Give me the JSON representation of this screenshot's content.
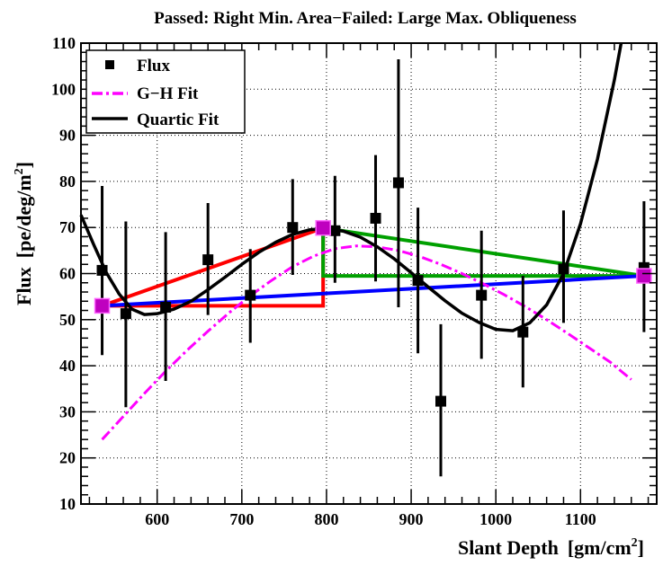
{
  "chart_data": {
    "type": "scatter",
    "title": "Passed: Right Min. Area−Failed: Large Max. Obliqueness",
    "xlabel": "Slant Depth",
    "xlabel_units": "[gm/cm",
    "xlabel_units_sup": "2",
    "xlabel_units_end": "]",
    "ylabel": "Flux",
    "ylabel_units": "[pe/deg/m",
    "ylabel_units_sup": "2",
    "ylabel_units_end": "]",
    "xlim": [
      510,
      1190
    ],
    "ylim": [
      10,
      110
    ],
    "xticks": [
      600,
      700,
      800,
      900,
      1000,
      1100
    ],
    "yticks": [
      10,
      20,
      30,
      40,
      50,
      60,
      70,
      80,
      90,
      100,
      110
    ],
    "grid": true,
    "legend_position": "top-left",
    "legend": [
      {
        "label": "Flux",
        "style": "marker",
        "color": "#000000"
      },
      {
        "label": "G−H Fit",
        "style": "dashdot",
        "color": "#ff00ff"
      },
      {
        "label": "Quartic Fit",
        "style": "solid",
        "color": "#000000"
      }
    ],
    "flux_points": [
      {
        "x": 535,
        "y": 60.7,
        "err_low": 42.3,
        "err_high": 79.0
      },
      {
        "x": 563,
        "y": 51.3,
        "err_low": 31.0,
        "err_high": 71.3
      },
      {
        "x": 610,
        "y": 52.7,
        "err_low": 36.7,
        "err_high": 69.0
      },
      {
        "x": 660,
        "y": 63.0,
        "err_low": 51.0,
        "err_high": 75.3
      },
      {
        "x": 710,
        "y": 55.3,
        "err_low": 45.0,
        "err_high": 65.3
      },
      {
        "x": 760,
        "y": 70.0,
        "err_low": 59.7,
        "err_high": 80.5
      },
      {
        "x": 810,
        "y": 69.3,
        "err_low": 58.0,
        "err_high": 81.2
      },
      {
        "x": 858,
        "y": 72.0,
        "err_low": 58.3,
        "err_high": 85.7
      },
      {
        "x": 885,
        "y": 79.7,
        "err_low": 52.7,
        "err_high": 106.5
      },
      {
        "x": 908,
        "y": 58.5,
        "err_low": 42.7,
        "err_high": 74.3
      },
      {
        "x": 935,
        "y": 32.3,
        "err_low": 16.0,
        "err_high": 49.0
      },
      {
        "x": 983,
        "y": 55.3,
        "err_low": 41.5,
        "err_high": 69.3
      },
      {
        "x": 1032,
        "y": 47.3,
        "err_low": 35.3,
        "err_high": 59.5
      },
      {
        "x": 1080,
        "y": 61.0,
        "err_low": 49.3,
        "err_high": 73.7
      },
      {
        "x": 1175,
        "y": 61.3,
        "err_low": 47.3,
        "err_high": 75.7
      }
    ],
    "gh_fit": [
      {
        "x": 535,
        "y": 24.0
      },
      {
        "x": 560,
        "y": 29.0
      },
      {
        "x": 585,
        "y": 34.0
      },
      {
        "x": 610,
        "y": 38.8
      },
      {
        "x": 635,
        "y": 43.3
      },
      {
        "x": 660,
        "y": 47.5
      },
      {
        "x": 685,
        "y": 51.5
      },
      {
        "x": 710,
        "y": 55.2
      },
      {
        "x": 735,
        "y": 58.5
      },
      {
        "x": 760,
        "y": 61.5
      },
      {
        "x": 785,
        "y": 63.8
      },
      {
        "x": 810,
        "y": 65.4
      },
      {
        "x": 835,
        "y": 66.0
      },
      {
        "x": 860,
        "y": 65.8
      },
      {
        "x": 885,
        "y": 65.0
      },
      {
        "x": 910,
        "y": 63.7
      },
      {
        "x": 935,
        "y": 62.0
      },
      {
        "x": 960,
        "y": 60.0
      },
      {
        "x": 985,
        "y": 57.8
      },
      {
        "x": 1010,
        "y": 55.4
      },
      {
        "x": 1035,
        "y": 52.8
      },
      {
        "x": 1060,
        "y": 50.0
      },
      {
        "x": 1085,
        "y": 47.0
      },
      {
        "x": 1110,
        "y": 43.9
      },
      {
        "x": 1135,
        "y": 40.8
      },
      {
        "x": 1160,
        "y": 37.0
      }
    ],
    "quartic_fit": [
      {
        "x": 510,
        "y": 72.7
      },
      {
        "x": 525,
        "y": 66.3
      },
      {
        "x": 540,
        "y": 60.2
      },
      {
        "x": 555,
        "y": 55.6
      },
      {
        "x": 570,
        "y": 52.3
      },
      {
        "x": 585,
        "y": 51.1
      },
      {
        "x": 600,
        "y": 51.3
      },
      {
        "x": 620,
        "y": 52.3
      },
      {
        "x": 640,
        "y": 54.0
      },
      {
        "x": 660,
        "y": 56.5
      },
      {
        "x": 680,
        "y": 59.2
      },
      {
        "x": 700,
        "y": 62.0
      },
      {
        "x": 720,
        "y": 64.6
      },
      {
        "x": 740,
        "y": 66.8
      },
      {
        "x": 760,
        "y": 68.5
      },
      {
        "x": 780,
        "y": 69.5
      },
      {
        "x": 800,
        "y": 69.8
      },
      {
        "x": 820,
        "y": 69.2
      },
      {
        "x": 840,
        "y": 67.9
      },
      {
        "x": 860,
        "y": 65.8
      },
      {
        "x": 880,
        "y": 63.2
      },
      {
        "x": 900,
        "y": 60.2
      },
      {
        "x": 920,
        "y": 57.1
      },
      {
        "x": 940,
        "y": 54.1
      },
      {
        "x": 960,
        "y": 51.4
      },
      {
        "x": 980,
        "y": 49.4
      },
      {
        "x": 1000,
        "y": 47.9
      },
      {
        "x": 1020,
        "y": 47.6
      },
      {
        "x": 1040,
        "y": 49.3
      },
      {
        "x": 1060,
        "y": 53.2
      },
      {
        "x": 1080,
        "y": 60.0
      },
      {
        "x": 1100,
        "y": 70.8
      },
      {
        "x": 1120,
        "y": 84.8
      },
      {
        "x": 1140,
        "y": 102.0
      },
      {
        "x": 1148,
        "y": 110.0
      }
    ],
    "anchor_points": [
      {
        "name": "left",
        "x": 535,
        "y": 53.0
      },
      {
        "name": "peak",
        "x": 796,
        "y": 69.9
      },
      {
        "name": "right",
        "x": 1175,
        "y": 59.5
      }
    ],
    "shapes": [
      {
        "name": "left-triangle",
        "color": "#ff0000",
        "points": [
          {
            "x": 535,
            "y": 53.0
          },
          {
            "x": 796,
            "y": 69.9
          },
          {
            "x": 796,
            "y": 53.0
          }
        ]
      },
      {
        "name": "right-triangle",
        "color": "#00a000",
        "points": [
          {
            "x": 796,
            "y": 69.9
          },
          {
            "x": 1175,
            "y": 59.5
          },
          {
            "x": 796,
            "y": 59.5
          }
        ]
      },
      {
        "name": "baseline",
        "color": "#0000ff",
        "points": [
          {
            "x": 535,
            "y": 53.0
          },
          {
            "x": 1175,
            "y": 59.5
          }
        ]
      }
    ],
    "colors": {
      "axis": "#000000",
      "grid": "#000000",
      "marker": "#000000",
      "gh": "#ff00ff",
      "quartic": "#000000",
      "red": "#ff0000",
      "green": "#00a000",
      "blue": "#0000ff",
      "anchor_fill": "#bf00bf",
      "anchor_stroke": "#ff66ff"
    }
  }
}
